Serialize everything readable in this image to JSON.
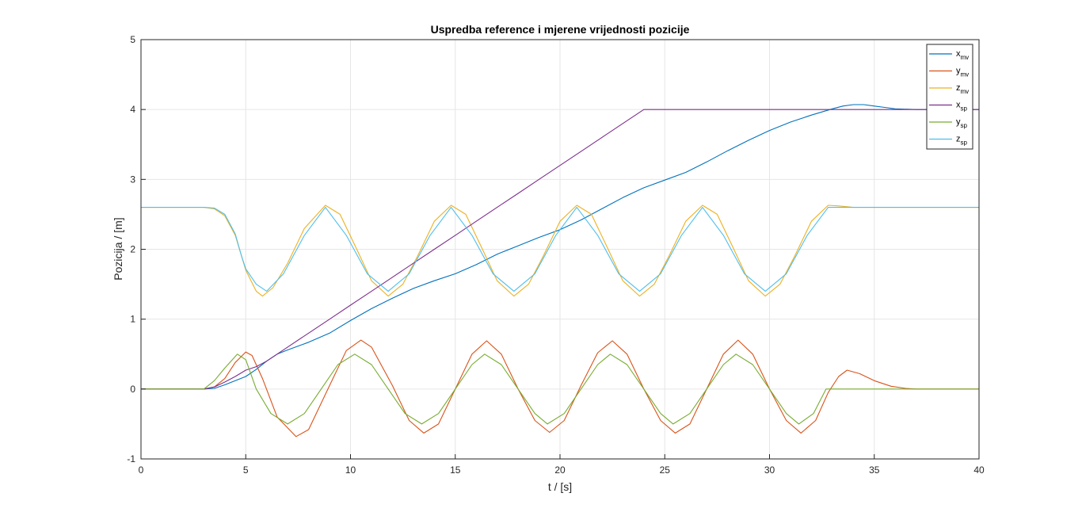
{
  "chart_data": {
    "type": "line",
    "title": "Uspredba reference i mjerene vrijednosti pozicije",
    "xlabel": "t / [s]",
    "ylabel": "Pozicija / [m]",
    "xlim": [
      0,
      40
    ],
    "ylim": [
      -1,
      5
    ],
    "xticks": [
      0,
      5,
      10,
      15,
      20,
      25,
      30,
      35,
      40
    ],
    "yticks": [
      -1,
      0,
      1,
      2,
      3,
      4,
      5
    ],
    "grid": true,
    "legend_position": "top-right",
    "series": [
      {
        "name": "x",
        "sub": "mv",
        "color": "#0072BD",
        "points": [
          [
            0,
            0
          ],
          [
            3,
            0
          ],
          [
            3.5,
            0.01
          ],
          [
            4,
            0.06
          ],
          [
            5,
            0.18
          ],
          [
            5.5,
            0.28
          ],
          [
            6,
            0.4
          ],
          [
            6.5,
            0.5
          ],
          [
            7,
            0.56
          ],
          [
            8,
            0.67
          ],
          [
            9,
            0.8
          ],
          [
            10,
            0.98
          ],
          [
            11,
            1.15
          ],
          [
            12,
            1.3
          ],
          [
            13,
            1.44
          ],
          [
            14,
            1.55
          ],
          [
            15,
            1.65
          ],
          [
            16,
            1.78
          ],
          [
            17,
            1.93
          ],
          [
            18,
            2.05
          ],
          [
            19,
            2.17
          ],
          [
            20,
            2.28
          ],
          [
            21,
            2.42
          ],
          [
            22,
            2.58
          ],
          [
            23,
            2.74
          ],
          [
            24,
            2.88
          ],
          [
            25,
            2.99
          ],
          [
            26,
            3.1
          ],
          [
            27,
            3.25
          ],
          [
            28,
            3.41
          ],
          [
            29,
            3.56
          ],
          [
            30,
            3.7
          ],
          [
            31,
            3.82
          ],
          [
            32,
            3.92
          ],
          [
            33,
            4.01
          ],
          [
            33.5,
            4.05
          ],
          [
            34,
            4.07
          ],
          [
            34.5,
            4.07
          ],
          [
            35,
            4.05
          ],
          [
            35.5,
            4.03
          ],
          [
            36,
            4.01
          ],
          [
            37,
            4.0
          ],
          [
            40,
            4.0
          ]
        ]
      },
      {
        "name": "y",
        "sub": "mv",
        "color": "#D95319",
        "points": [
          [
            0,
            0
          ],
          [
            3,
            0
          ],
          [
            3.5,
            0.03
          ],
          [
            4,
            0.15
          ],
          [
            4.5,
            0.38
          ],
          [
            5,
            0.53
          ],
          [
            5.3,
            0.48
          ],
          [
            5.8,
            0.15
          ],
          [
            6.5,
            -0.4
          ],
          [
            7.4,
            -0.68
          ],
          [
            8,
            -0.58
          ],
          [
            9,
            0.05
          ],
          [
            9.8,
            0.55
          ],
          [
            10.5,
            0.7
          ],
          [
            11,
            0.6
          ],
          [
            12,
            0.05
          ],
          [
            12.8,
            -0.45
          ],
          [
            13.5,
            -0.63
          ],
          [
            14.2,
            -0.5
          ],
          [
            15,
            0.0
          ],
          [
            15.8,
            0.5
          ],
          [
            16.5,
            0.69
          ],
          [
            17.2,
            0.5
          ],
          [
            18,
            0.0
          ],
          [
            18.8,
            -0.45
          ],
          [
            19.5,
            -0.62
          ],
          [
            20.2,
            -0.45
          ],
          [
            21,
            0.05
          ],
          [
            21.8,
            0.52
          ],
          [
            22.5,
            0.69
          ],
          [
            23.2,
            0.5
          ],
          [
            24,
            0.0
          ],
          [
            24.8,
            -0.45
          ],
          [
            25.5,
            -0.63
          ],
          [
            26.2,
            -0.5
          ],
          [
            27,
            0.0
          ],
          [
            27.8,
            0.5
          ],
          [
            28.5,
            0.7
          ],
          [
            29.2,
            0.5
          ],
          [
            30,
            0.0
          ],
          [
            30.8,
            -0.45
          ],
          [
            31.5,
            -0.63
          ],
          [
            32.2,
            -0.45
          ],
          [
            32.8,
            -0.05
          ],
          [
            33.3,
            0.18
          ],
          [
            33.7,
            0.27
          ],
          [
            34.3,
            0.22
          ],
          [
            35,
            0.12
          ],
          [
            35.8,
            0.04
          ],
          [
            36.5,
            0.01
          ],
          [
            37,
            0.0
          ],
          [
            40,
            0.0
          ]
        ]
      },
      {
        "name": "z",
        "sub": "mv",
        "color": "#EDB120",
        "points": [
          [
            0,
            2.6
          ],
          [
            3,
            2.6
          ],
          [
            3.5,
            2.58
          ],
          [
            4,
            2.48
          ],
          [
            4.5,
            2.2
          ],
          [
            5,
            1.7
          ],
          [
            5.5,
            1.4
          ],
          [
            5.8,
            1.33
          ],
          [
            6.3,
            1.45
          ],
          [
            7,
            1.8
          ],
          [
            7.8,
            2.3
          ],
          [
            8.8,
            2.63
          ],
          [
            9.5,
            2.5
          ],
          [
            10.3,
            2.0
          ],
          [
            11,
            1.55
          ],
          [
            11.8,
            1.33
          ],
          [
            12.5,
            1.5
          ],
          [
            13.2,
            1.9
          ],
          [
            14,
            2.4
          ],
          [
            14.8,
            2.63
          ],
          [
            15.5,
            2.5
          ],
          [
            16.3,
            2.0
          ],
          [
            17,
            1.55
          ],
          [
            17.8,
            1.33
          ],
          [
            18.5,
            1.5
          ],
          [
            19.2,
            1.9
          ],
          [
            20,
            2.4
          ],
          [
            20.8,
            2.63
          ],
          [
            21.5,
            2.5
          ],
          [
            22.3,
            2.0
          ],
          [
            23,
            1.55
          ],
          [
            23.8,
            1.33
          ],
          [
            24.5,
            1.5
          ],
          [
            25.2,
            1.9
          ],
          [
            26,
            2.4
          ],
          [
            26.8,
            2.63
          ],
          [
            27.5,
            2.5
          ],
          [
            28.3,
            2.0
          ],
          [
            29,
            1.55
          ],
          [
            29.8,
            1.33
          ],
          [
            30.5,
            1.5
          ],
          [
            31.2,
            1.9
          ],
          [
            32,
            2.4
          ],
          [
            32.8,
            2.63
          ],
          [
            33.3,
            2.62
          ],
          [
            34,
            2.6
          ],
          [
            40,
            2.6
          ]
        ]
      },
      {
        "name": "x",
        "sub": "sp",
        "color": "#7E2F8E",
        "points": [
          [
            0,
            0
          ],
          [
            3,
            0
          ],
          [
            3.5,
            0.03
          ],
          [
            4,
            0.1
          ],
          [
            4.5,
            0.18
          ],
          [
            5,
            0.27
          ],
          [
            5.5,
            0.32
          ],
          [
            6,
            0.4
          ],
          [
            7,
            0.6
          ],
          [
            8,
            0.8
          ],
          [
            9,
            1.0
          ],
          [
            10,
            1.2
          ],
          [
            11,
            1.4
          ],
          [
            12,
            1.6
          ],
          [
            13,
            1.8
          ],
          [
            14,
            2.0
          ],
          [
            15,
            2.2
          ],
          [
            16,
            2.4
          ],
          [
            17,
            2.6
          ],
          [
            18,
            2.8
          ],
          [
            19,
            3.0
          ],
          [
            20,
            3.2
          ],
          [
            21,
            3.4
          ],
          [
            22,
            3.6
          ],
          [
            23,
            3.8
          ],
          [
            24,
            4.0
          ],
          [
            33,
            4.0
          ],
          [
            40,
            4.0
          ]
        ]
      },
      {
        "name": "y",
        "sub": "sp",
        "color": "#77AC30",
        "points": [
          [
            0,
            0
          ],
          [
            3,
            0
          ],
          [
            3.5,
            0.12
          ],
          [
            4,
            0.3
          ],
          [
            4.6,
            0.5
          ],
          [
            5,
            0.42
          ],
          [
            5.5,
            0.0
          ],
          [
            6.2,
            -0.35
          ],
          [
            7,
            -0.5
          ],
          [
            7.8,
            -0.35
          ],
          [
            8.6,
            0.0
          ],
          [
            9.4,
            0.35
          ],
          [
            10.2,
            0.5
          ],
          [
            11,
            0.35
          ],
          [
            11.8,
            0.0
          ],
          [
            12.6,
            -0.35
          ],
          [
            13.4,
            -0.5
          ],
          [
            14.2,
            -0.35
          ],
          [
            15,
            0.0
          ],
          [
            15.8,
            0.35
          ],
          [
            16.4,
            0.5
          ],
          [
            17.2,
            0.35
          ],
          [
            18,
            0.0
          ],
          [
            18.8,
            -0.35
          ],
          [
            19.4,
            -0.5
          ],
          [
            20.2,
            -0.35
          ],
          [
            21,
            0.0
          ],
          [
            21.8,
            0.35
          ],
          [
            22.4,
            0.5
          ],
          [
            23.2,
            0.35
          ],
          [
            24,
            0.0
          ],
          [
            24.8,
            -0.35
          ],
          [
            25.4,
            -0.5
          ],
          [
            26.2,
            -0.35
          ],
          [
            27,
            0.0
          ],
          [
            27.8,
            0.35
          ],
          [
            28.4,
            0.5
          ],
          [
            29.2,
            0.35
          ],
          [
            30,
            0.0
          ],
          [
            30.8,
            -0.35
          ],
          [
            31.4,
            -0.5
          ],
          [
            32.1,
            -0.35
          ],
          [
            32.7,
            0.0
          ],
          [
            40,
            0.0
          ]
        ]
      },
      {
        "name": "z",
        "sub": "sp",
        "color": "#4DBEEE",
        "points": [
          [
            0,
            2.6
          ],
          [
            3,
            2.6
          ],
          [
            3.5,
            2.59
          ],
          [
            4,
            2.5
          ],
          [
            4.5,
            2.22
          ],
          [
            4.8,
            1.9
          ],
          [
            5,
            1.72
          ],
          [
            5.5,
            1.5
          ],
          [
            6,
            1.4
          ],
          [
            6.8,
            1.65
          ],
          [
            7.8,
            2.2
          ],
          [
            8.8,
            2.6
          ],
          [
            9.8,
            2.2
          ],
          [
            10.8,
            1.65
          ],
          [
            11.8,
            1.4
          ],
          [
            12.8,
            1.65
          ],
          [
            13.8,
            2.2
          ],
          [
            14.8,
            2.6
          ],
          [
            15.8,
            2.2
          ],
          [
            16.8,
            1.65
          ],
          [
            17.8,
            1.4
          ],
          [
            18.8,
            1.65
          ],
          [
            19.8,
            2.2
          ],
          [
            20.8,
            2.6
          ],
          [
            21.8,
            2.2
          ],
          [
            22.8,
            1.65
          ],
          [
            23.8,
            1.4
          ],
          [
            24.8,
            1.65
          ],
          [
            25.8,
            2.2
          ],
          [
            26.8,
            2.6
          ],
          [
            27.8,
            2.2
          ],
          [
            28.8,
            1.65
          ],
          [
            29.8,
            1.4
          ],
          [
            30.8,
            1.65
          ],
          [
            31.8,
            2.2
          ],
          [
            32.8,
            2.6
          ],
          [
            40,
            2.6
          ]
        ]
      }
    ]
  }
}
